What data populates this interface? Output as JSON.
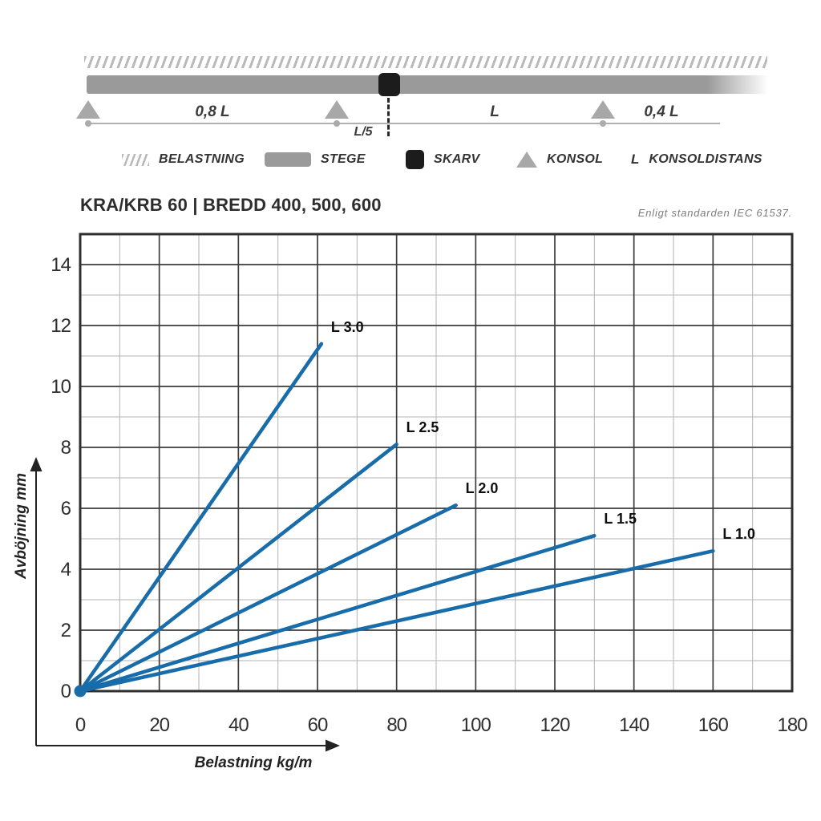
{
  "schematic": {
    "span_left_label": "0,8 L",
    "splice_offset_label": "L/5",
    "span_mid_label": "L",
    "span_right_label": "0,4 L"
  },
  "legend": {
    "items": [
      {
        "icon": "hatch-icon",
        "label": "BELASTNING"
      },
      {
        "icon": "ladder-icon",
        "label": "STEGE"
      },
      {
        "icon": "splice-icon",
        "label": "SKARV"
      },
      {
        "icon": "bracket-icon",
        "label": "KONSOL"
      },
      {
        "icon": "letter-l",
        "label": "KONSOLDISTANS",
        "symbol": "L"
      }
    ]
  },
  "header": {
    "title": "KRA/KRB 60 | BREDD 400, 500, 600",
    "note": "Enligt standarden IEC 61537."
  },
  "colors": {
    "line_blue": "#176ca9",
    "ladder_gray": "#9a9a9a",
    "bracket_gray": "#a8a8a8",
    "hatch_gray": "#b9b9b9",
    "splice_black": "#1c1c1c",
    "grid_major": "#3c3c3c",
    "grid_minor": "#b3b3b3",
    "text_dark": "#2f2f2f"
  },
  "chart_data": {
    "type": "line",
    "title": "KRA/KRB 60 | BREDD 400, 500, 600",
    "xlabel": "Belastning kg/m",
    "ylabel": "Avböjning mm",
    "xlim": [
      0,
      180
    ],
    "ylim": [
      0,
      15
    ],
    "x_ticks": [
      0,
      20,
      40,
      60,
      80,
      100,
      120,
      140,
      160,
      180
    ],
    "y_ticks": [
      0,
      2,
      4,
      6,
      8,
      10,
      12,
      14
    ],
    "x_minor_step": 10,
    "y_minor_step": 1,
    "grid": true,
    "legend_position": "inline-labels",
    "line_color": "#176ca9",
    "series": [
      {
        "name": "L 3.0",
        "x": [
          0,
          61
        ],
        "y": [
          0,
          11.4
        ]
      },
      {
        "name": "L 2.5",
        "x": [
          0,
          80
        ],
        "y": [
          0,
          8.1
        ]
      },
      {
        "name": "L 2.0",
        "x": [
          0,
          95
        ],
        "y": [
          0,
          6.1
        ]
      },
      {
        "name": "L 1.5",
        "x": [
          0,
          130
        ],
        "y": [
          0,
          5.1
        ]
      },
      {
        "name": "L 1.0",
        "x": [
          0,
          160
        ],
        "y": [
          0,
          4.6
        ]
      }
    ]
  }
}
